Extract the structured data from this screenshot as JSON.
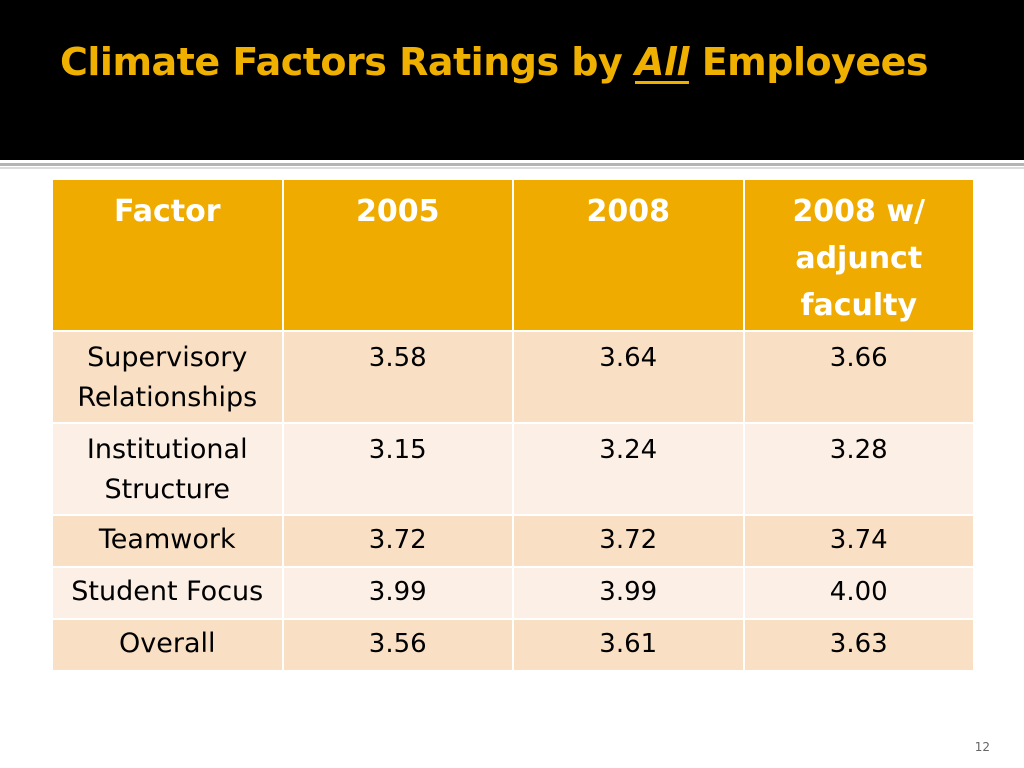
{
  "slide": {
    "title_prefix": "Climate Factors Ratings by ",
    "title_emphasis": "All",
    "title_suffix": " Employees",
    "page_number": "12"
  },
  "table": {
    "headers": [
      "Factor",
      "2005",
      "2008",
      "2008 w/ adjunct faculty"
    ],
    "rows": [
      {
        "factor": "Supervisory Relationships",
        "y2005": "3.58",
        "y2008": "3.64",
        "y2008_adjunct": "3.66"
      },
      {
        "factor": "Institutional Structure",
        "y2005": "3.15",
        "y2008": "3.24",
        "y2008_adjunct": "3.28"
      },
      {
        "factor": "Teamwork",
        "y2005": "3.72",
        "y2008": "3.72",
        "y2008_adjunct": "3.74"
      },
      {
        "factor": "Student Focus",
        "y2005": "3.99",
        "y2008": "3.99",
        "y2008_adjunct": "4.00"
      },
      {
        "factor": "Overall",
        "y2005": "3.56",
        "y2008": "3.61",
        "y2008_adjunct": "3.63"
      }
    ]
  },
  "colors": {
    "title_text": "#f0b000",
    "title_background": "#000000",
    "header_fill": "#f0ab00",
    "row_fill_dark": "#f9dfc4",
    "row_fill_light": "#fcefe5"
  }
}
